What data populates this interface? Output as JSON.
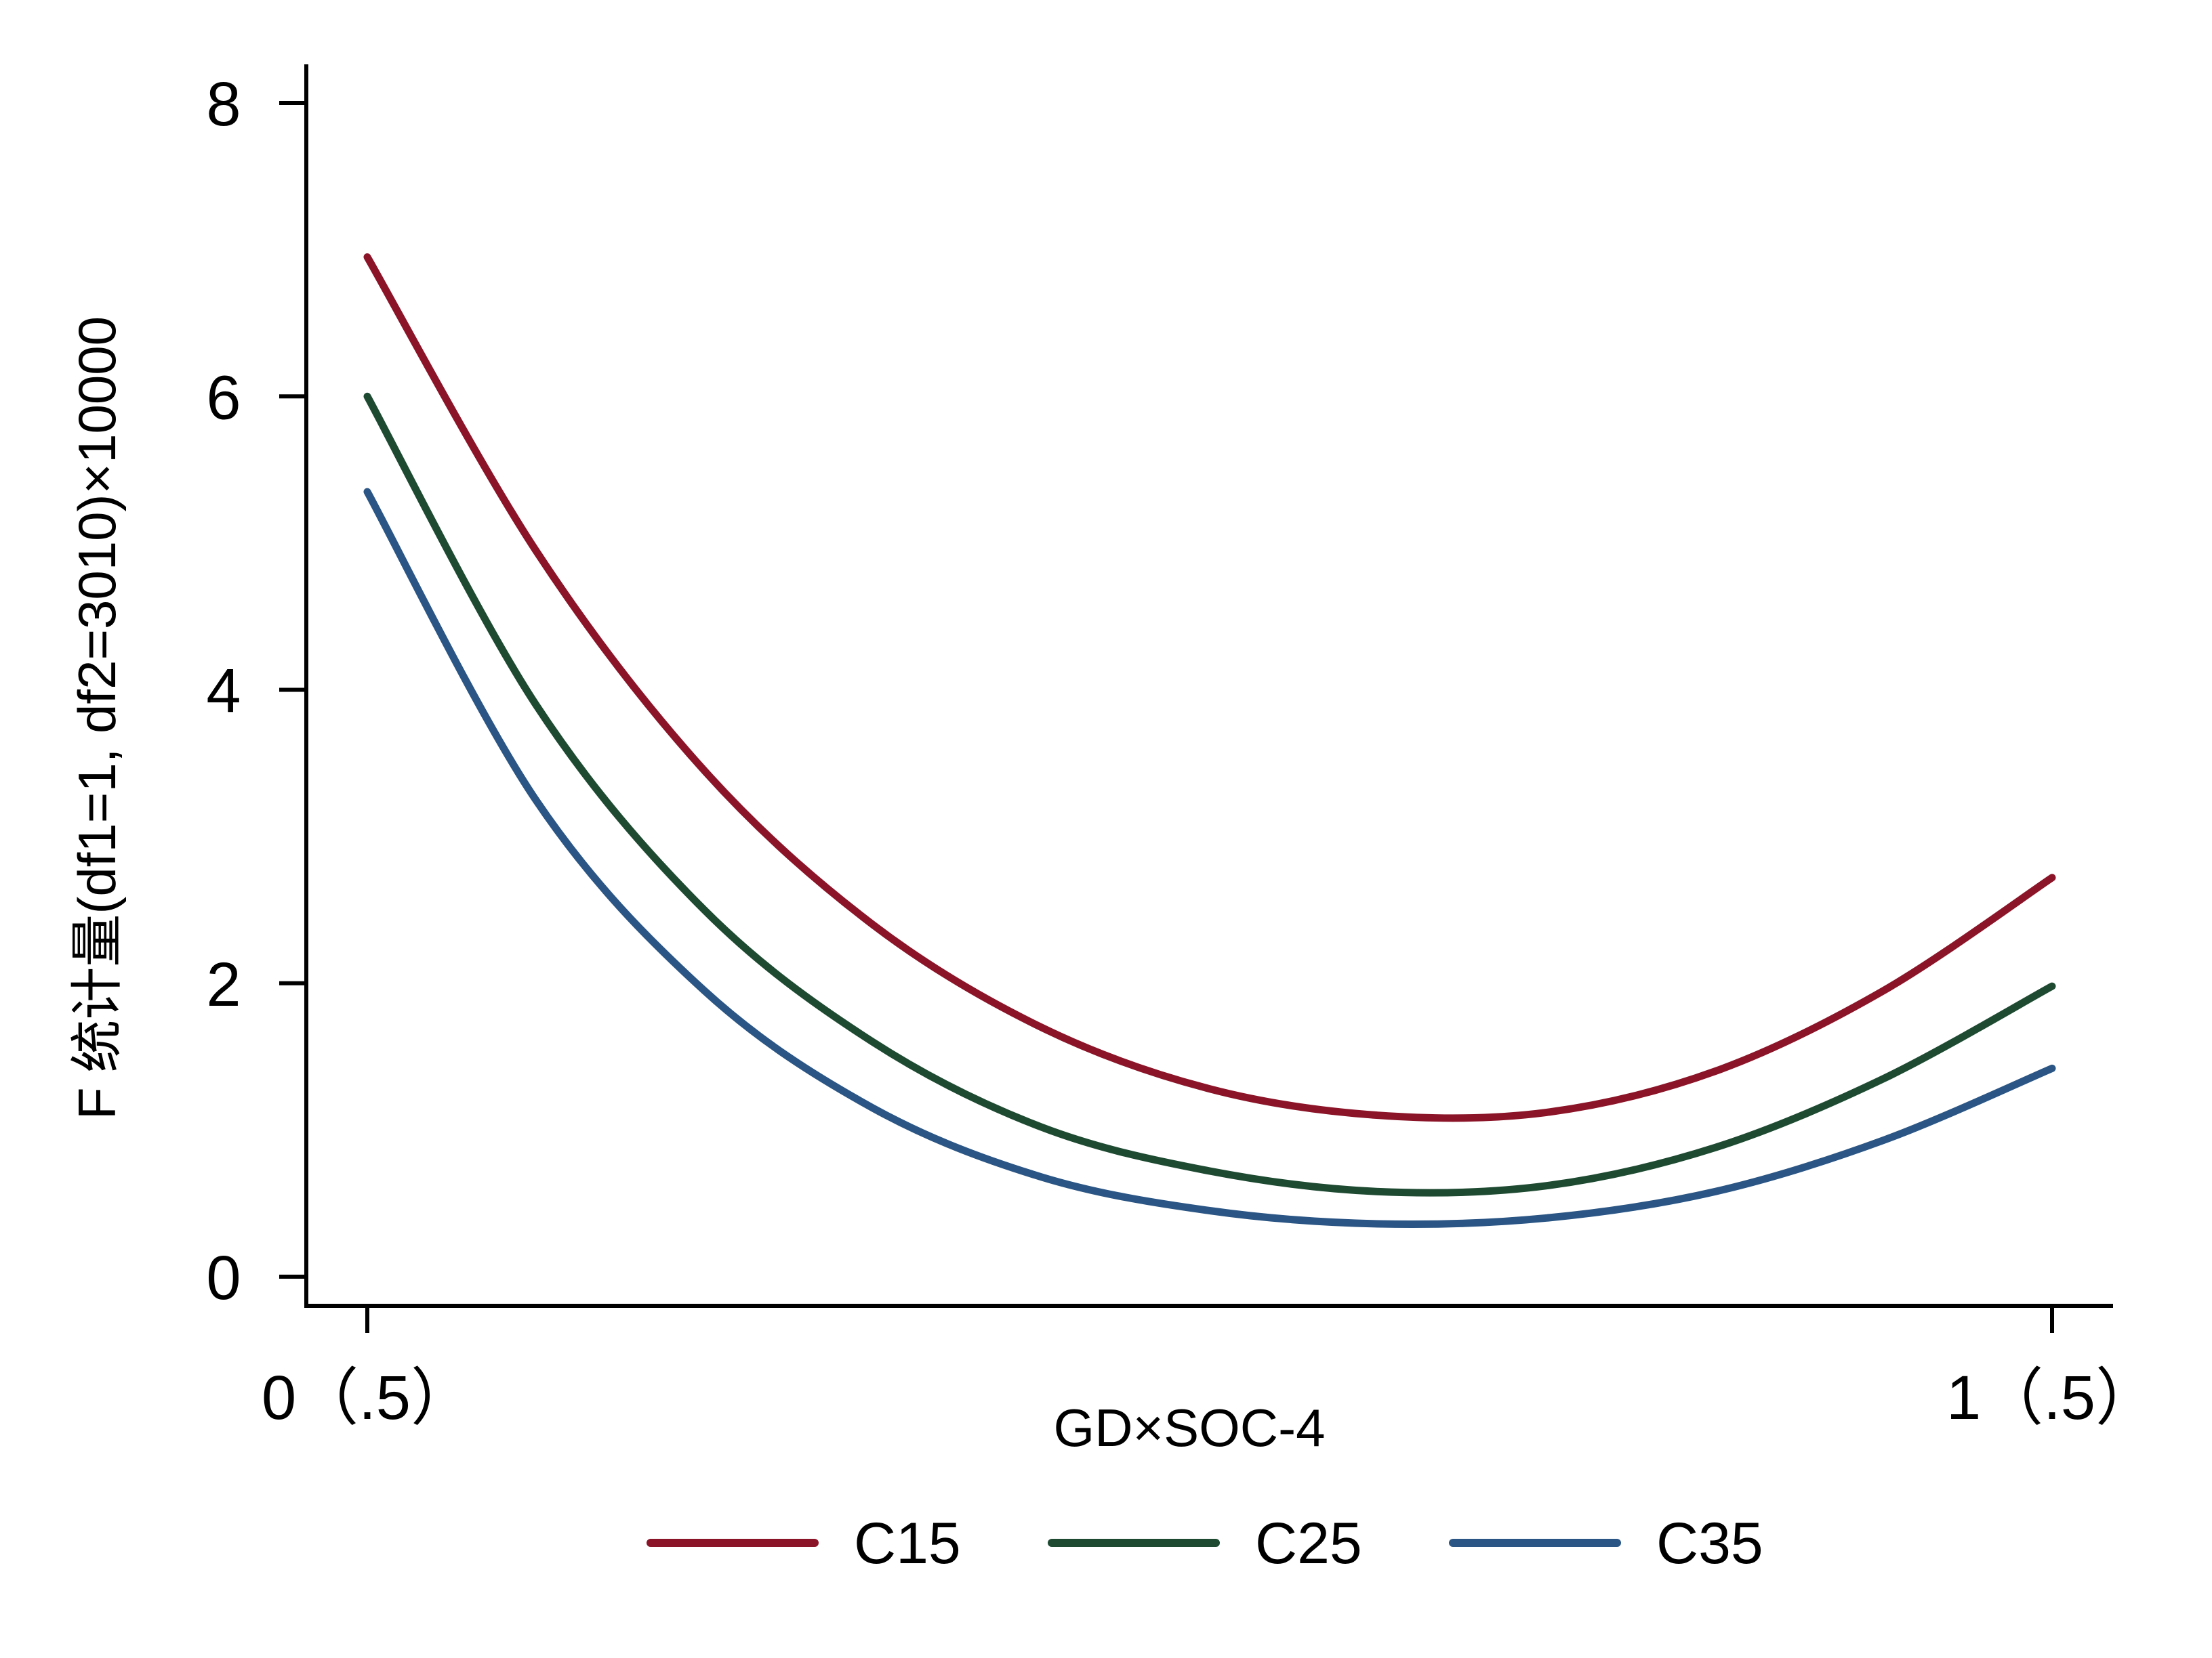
{
  "chart_data": {
    "type": "line",
    "xlabel": "GD×SOC-4",
    "ylabel": "F 统计量(df1=1, df2=3010)×10000",
    "x_ticks": [
      {
        "value": 0,
        "label": "0（.5）"
      },
      {
        "value": 1,
        "label": "1（.5）"
      }
    ],
    "y_ticks": [
      {
        "value": 0,
        "label": "0"
      },
      {
        "value": 2,
        "label": "2"
      },
      {
        "value": 4,
        "label": "4"
      },
      {
        "value": 6,
        "label": "6"
      },
      {
        "value": 8,
        "label": "8"
      }
    ],
    "xlim": [
      -0.04,
      1.04
    ],
    "ylim": [
      -0.2,
      8.3
    ],
    "grid": false,
    "legend_position": "bottom",
    "x": [
      0,
      0.1,
      0.2,
      0.3,
      0.4,
      0.5,
      0.6,
      0.7,
      0.8,
      0.9,
      1.0
    ],
    "series": [
      {
        "name": "C15",
        "color": "#8b1428",
        "values": [
          6.95,
          4.95,
          3.45,
          2.4,
          1.7,
          1.28,
          1.1,
          1.12,
          1.4,
          1.95,
          2.72
        ]
      },
      {
        "name": "C25",
        "color": "#1e4a32",
        "values": [
          6.0,
          3.9,
          2.5,
          1.6,
          1.02,
          0.72,
          0.58,
          0.62,
          0.88,
          1.35,
          1.98
        ]
      },
      {
        "name": "C35",
        "color": "#2a5584",
        "values": [
          5.35,
          3.25,
          1.95,
          1.15,
          0.68,
          0.45,
          0.36,
          0.4,
          0.58,
          0.93,
          1.42
        ]
      }
    ]
  }
}
